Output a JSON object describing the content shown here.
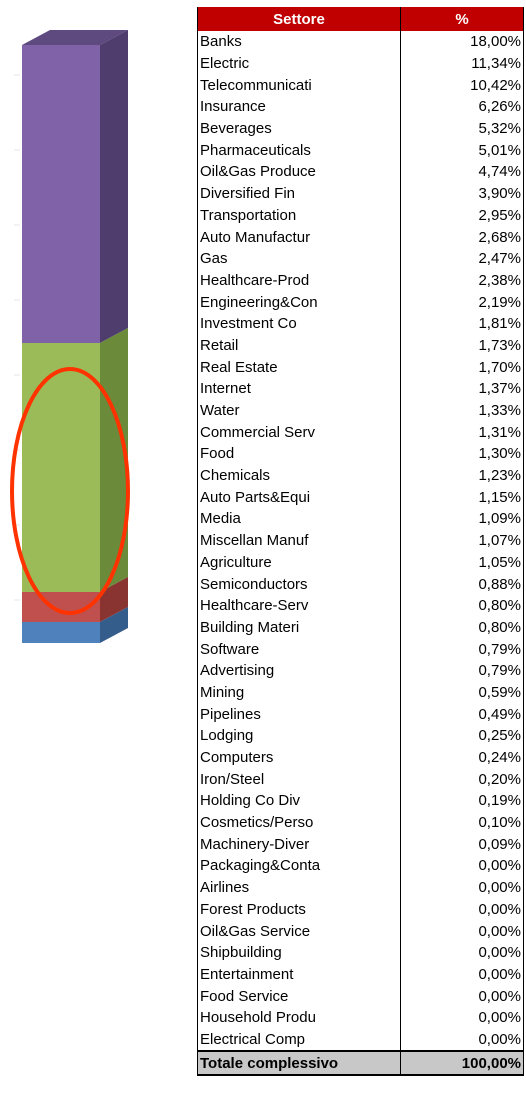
{
  "table": {
    "header": [
      "Settore",
      "%"
    ],
    "rows": [
      [
        "Banks",
        "18,00%"
      ],
      [
        "Electric",
        "11,34%"
      ],
      [
        "Telecommunicati",
        "10,42%"
      ],
      [
        "Insurance",
        "6,26%"
      ],
      [
        "Beverages",
        "5,32%"
      ],
      [
        "Pharmaceuticals",
        "5,01%"
      ],
      [
        "Oil&Gas Produce",
        "4,74%"
      ],
      [
        "Diversified Fin",
        "3,90%"
      ],
      [
        "Transportation",
        "2,95%"
      ],
      [
        "Auto Manufactur",
        "2,68%"
      ],
      [
        "Gas",
        "2,47%"
      ],
      [
        "Healthcare-Prod",
        "2,38%"
      ],
      [
        "Engineering&Con",
        "2,19%"
      ],
      [
        "Investment Co",
        "1,81%"
      ],
      [
        "Retail",
        "1,73%"
      ],
      [
        "Real Estate",
        "1,70%"
      ],
      [
        "Internet",
        "1,37%"
      ],
      [
        "Water",
        "1,33%"
      ],
      [
        "Commercial Serv",
        "1,31%"
      ],
      [
        "Food",
        "1,30%"
      ],
      [
        "Chemicals",
        "1,23%"
      ],
      [
        "Auto Parts&Equi",
        "1,15%"
      ],
      [
        "Media",
        "1,09%"
      ],
      [
        "Miscellan Manuf",
        "1,07%"
      ],
      [
        "Agriculture",
        "1,05%"
      ],
      [
        "Semiconductors",
        "0,88%"
      ],
      [
        "Healthcare-Serv",
        "0,80%"
      ],
      [
        "Building Materi",
        "0,80%"
      ],
      [
        "Software",
        "0,79%"
      ],
      [
        "Advertising",
        "0,79%"
      ],
      [
        "Mining",
        "0,59%"
      ],
      [
        "Pipelines",
        "0,49%"
      ],
      [
        "Lodging",
        "0,25%"
      ],
      [
        "Computers",
        "0,24%"
      ],
      [
        "Iron/Steel",
        "0,20%"
      ],
      [
        "Holding Co Div",
        "0,19%"
      ],
      [
        "Cosmetics/Perso",
        "0,10%"
      ],
      [
        "Machinery-Diver",
        "0,09%"
      ],
      [
        "Packaging&Conta",
        "0,00%"
      ],
      [
        "Airlines",
        "0,00%"
      ],
      [
        "Forest Products",
        "0,00%"
      ],
      [
        "Oil&Gas Service",
        "0,00%"
      ],
      [
        "Shipbuilding",
        "0,00%"
      ],
      [
        "Entertainment",
        "0,00%"
      ],
      [
        "Food Service",
        "0,00%"
      ],
      [
        "Household Produ",
        "0,00%"
      ],
      [
        "Electrical Comp",
        "0,00%"
      ]
    ],
    "total": [
      "Totale complessivo",
      "100,00%"
    ]
  }
}
